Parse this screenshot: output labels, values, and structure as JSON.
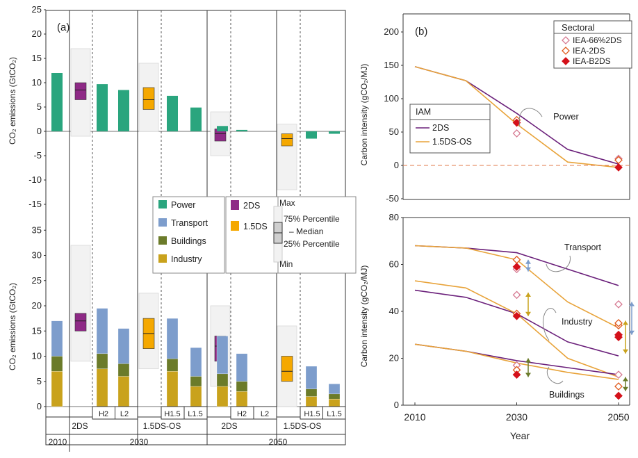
{
  "panel_a": {
    "label": "(a)",
    "ylabel_top": "CO₂ emissions (GtCO₂)",
    "ylabel_bottom": "CO₂ emissions (GtCO₂)",
    "xgroups_row1": [
      "2DS",
      "1.5DS-OS",
      "2DS",
      "1.5DS-OS"
    ],
    "sub_labels": [
      "H2",
      "L2",
      "H1.5",
      "L1.5",
      "H2",
      "L2",
      "H1.5",
      "L1.5"
    ],
    "years_row": [
      "2010",
      "2030",
      "2050"
    ]
  },
  "legend_a": {
    "sectors": [
      {
        "name": "Power",
        "color": "#2aa57e"
      },
      {
        "name": "Transport",
        "color": "#7d9dcc"
      },
      {
        "name": "Buildings",
        "color": "#6b7b2a"
      },
      {
        "name": "Industry",
        "color": "#c9a21c"
      }
    ],
    "scenarios": [
      {
        "name": "2DS",
        "color": "#8e2a86"
      },
      {
        "name": "1.5DS",
        "color": "#f5a800"
      }
    ],
    "percentile_labels": [
      "Max",
      "75% Percentile",
      "Median",
      "25% Percentile",
      "Min"
    ]
  },
  "panel_b": {
    "label": "(b)",
    "ylabel_top": "Carbon intensity (gCO₂/MJ)",
    "ylabel_bottom": "Carbon intensity (gCO₂/MJ)",
    "xlabel": "Year",
    "legend_sectoral_title": "Sectoral",
    "legend_sectoral": [
      "IEA-66%2DS",
      "IEA-2DS",
      "IEA-B2DS"
    ],
    "legend_iam_title": "IAM",
    "legend_iam": [
      "2DS",
      "1.5DS-OS"
    ],
    "annotations": {
      "power": "Power",
      "transport": "Transport",
      "industry": "Industry",
      "buildings": "Buildings"
    }
  },
  "chart_data": [
    {
      "type": "bar",
      "title": "",
      "ylabel": "CO₂ emissions (GtCO₂)",
      "ylim": [
        -15,
        25
      ],
      "yticks": [
        -15,
        -10,
        -5,
        0,
        5,
        10,
        15,
        20,
        25
      ],
      "sector": "Power",
      "categories": [
        "2010",
        "2030 2DS H2",
        "2030 2DS L2",
        "2030 1.5DS-OS H1.5",
        "2030 1.5DS-OS L1.5",
        "2050 2DS H2",
        "2050 2DS L2",
        "2050 1.5DS-OS H1.5",
        "2050 1.5DS-OS L1.5"
      ],
      "values": [
        12,
        9.7,
        8.5,
        7.3,
        4.9,
        1.1,
        0.3,
        -1.5,
        -0.5
      ],
      "boxes": [
        {
          "category": "2030 2DS",
          "scenario": "2DS",
          "min": -1,
          "q1": 6.5,
          "median": 8.5,
          "q3": 10,
          "max": 17
        },
        {
          "category": "2030 1.5DS-OS",
          "scenario": "1.5DS",
          "min": 0,
          "q1": 4.5,
          "median": 6.5,
          "q3": 9,
          "max": 14
        },
        {
          "category": "2050 2DS",
          "scenario": "2DS",
          "min": -5,
          "q1": -2,
          "median": -0.5,
          "q3": 0.5,
          "max": 4
        },
        {
          "category": "2050 1.5DS-OS",
          "scenario": "1.5DS",
          "min": -12,
          "q1": -3,
          "median": -1.5,
          "q3": -0.5,
          "max": 1.5
        }
      ]
    },
    {
      "type": "bar",
      "title": "",
      "ylabel": "CO₂ emissions (GtCO₂)",
      "ylim": [
        0,
        35
      ],
      "yticks": [
        0,
        5,
        10,
        15,
        20,
        25,
        30,
        35
      ],
      "stacked": true,
      "categories": [
        "2010",
        "2030 2DS H2",
        "2030 2DS L2",
        "2030 1.5DS-OS H1.5",
        "2030 1.5DS-OS L1.5",
        "2050 2DS H2",
        "2050 2DS L2",
        "2050 1.5DS-OS H1.5",
        "2050 1.5DS-OS L1.5"
      ],
      "series": [
        {
          "name": "Industry",
          "values": [
            7,
            7.5,
            6,
            7,
            4,
            4,
            3,
            2,
            1.5
          ]
        },
        {
          "name": "Buildings",
          "values": [
            3,
            3,
            2.5,
            2.5,
            2,
            2.5,
            2,
            1.5,
            1
          ]
        },
        {
          "name": "Transport",
          "values": [
            7,
            9,
            7,
            8,
            5.7,
            7.5,
            5.5,
            4.5,
            2
          ]
        }
      ],
      "boxes": [
        {
          "category": "2030 2DS",
          "scenario": "2DS",
          "min": 9,
          "q1": 15,
          "median": 17,
          "q3": 18.5,
          "max": 32
        },
        {
          "category": "2030 1.5DS-OS",
          "scenario": "1.5DS",
          "min": 7.5,
          "q1": 11.5,
          "median": 14.5,
          "q3": 17.5,
          "max": 22.5
        },
        {
          "category": "2050 2DS",
          "scenario": "2DS",
          "min": 4,
          "q1": 9,
          "median": 12,
          "q3": 14,
          "max": 20
        },
        {
          "category": "2050 1.5DS-OS",
          "scenario": "1.5DS",
          "min": 0,
          "q1": 5,
          "median": 7,
          "q3": 10,
          "max": 16
        }
      ]
    },
    {
      "type": "line",
      "title": "",
      "xlabel": "",
      "ylabel": "Carbon intensity (gCO₂/MJ)",
      "xlim": [
        2005,
        2053
      ],
      "ylim": [
        -50,
        200
      ],
      "xticks": [
        2010,
        2030,
        2050
      ],
      "yticks": [
        -50,
        0,
        50,
        100,
        150,
        200
      ],
      "series": [
        {
          "name": "2DS",
          "sector": "Power",
          "color": "#6a1f7a",
          "x": [
            2010,
            2020,
            2030,
            2040,
            2050
          ],
          "y": [
            148,
            127,
            78,
            24,
            2
          ]
        },
        {
          "name": "1.5DS-OS",
          "sector": "Power",
          "color": "#e8a33a",
          "x": [
            2010,
            2020,
            2030,
            2040,
            2050
          ],
          "y": [
            148,
            127,
            62,
            5,
            -3
          ]
        }
      ],
      "markers": [
        {
          "name": "IEA-66%2DS",
          "sector": "Power",
          "x": [
            2030,
            2050
          ],
          "y": [
            48,
            10
          ]
        },
        {
          "name": "IEA-2DS",
          "sector": "Power",
          "x": [
            2030,
            2050
          ],
          "y": [
            68,
            8
          ]
        },
        {
          "name": "IEA-B2DS",
          "sector": "Power",
          "x": [
            2030,
            2050
          ],
          "y": [
            64,
            -3
          ]
        }
      ]
    },
    {
      "type": "line",
      "title": "",
      "xlabel": "Year",
      "ylabel": "Carbon intensity (gCO₂/MJ)",
      "xlim": [
        2005,
        2053
      ],
      "ylim": [
        0,
        80
      ],
      "xticks": [
        2010,
        2030,
        2050
      ],
      "yticks": [
        0,
        20,
        40,
        60,
        80
      ],
      "series": [
        {
          "name": "2DS",
          "sector": "Transport",
          "color": "#6a1f7a",
          "x": [
            2010,
            2020,
            2030,
            2040,
            2050
          ],
          "y": [
            68,
            67,
            65,
            58,
            51
          ]
        },
        {
          "name": "1.5DS-OS",
          "sector": "Transport",
          "color": "#e8a33a",
          "x": [
            2010,
            2020,
            2030,
            2040,
            2050
          ],
          "y": [
            68,
            67,
            62,
            44,
            33
          ]
        },
        {
          "name": "2DS",
          "sector": "Industry",
          "color": "#6a1f7a",
          "x": [
            2010,
            2020,
            2030,
            2040,
            2050
          ],
          "y": [
            49,
            46,
            39,
            27,
            21
          ]
        },
        {
          "name": "1.5DS-OS",
          "sector": "Industry",
          "color": "#e8a33a",
          "x": [
            2010,
            2020,
            2030,
            2040,
            2050
          ],
          "y": [
            53,
            50,
            39,
            20,
            12
          ]
        },
        {
          "name": "2DS",
          "sector": "Buildings",
          "color": "#6a1f7a",
          "x": [
            2010,
            2020,
            2030,
            2040,
            2050
          ],
          "y": [
            26,
            23,
            19,
            16,
            13
          ]
        },
        {
          "name": "1.5DS-OS",
          "sector": "Buildings",
          "color": "#e8a33a",
          "x": [
            2010,
            2020,
            2030,
            2040,
            2050
          ],
          "y": [
            26,
            23,
            18,
            14,
            11
          ]
        }
      ],
      "markers": [
        {
          "name": "IEA-66%2DS",
          "sector": "Transport",
          "x": [
            2030,
            2050
          ],
          "y": [
            58,
            30
          ]
        },
        {
          "name": "IEA-2DS",
          "sector": "Transport",
          "x": [
            2030,
            2050
          ],
          "y": [
            62,
            34
          ]
        },
        {
          "name": "IEA-B2DS",
          "sector": "Transport",
          "x": [
            2030,
            2050
          ],
          "y": [
            59,
            29
          ]
        },
        {
          "name": "IEA-66%2DS",
          "sector": "Industry",
          "x": [
            2030,
            2050
          ],
          "y": [
            47,
            43
          ]
        },
        {
          "name": "IEA-2DS",
          "sector": "Industry",
          "x": [
            2030,
            2050
          ],
          "y": [
            39,
            35
          ]
        },
        {
          "name": "IEA-B2DS",
          "sector": "Industry",
          "x": [
            2030,
            2050
          ],
          "y": [
            38,
            30
          ]
        },
        {
          "name": "IEA-66%2DS",
          "sector": "Buildings",
          "x": [
            2030,
            2050
          ],
          "y": [
            17,
            13
          ]
        },
        {
          "name": "IEA-2DS",
          "sector": "Buildings",
          "x": [
            2030,
            2050
          ],
          "y": [
            15,
            8
          ]
        },
        {
          "name": "IEA-B2DS",
          "sector": "Buildings",
          "x": [
            2030,
            2050
          ],
          "y": [
            13,
            4
          ]
        }
      ]
    }
  ]
}
